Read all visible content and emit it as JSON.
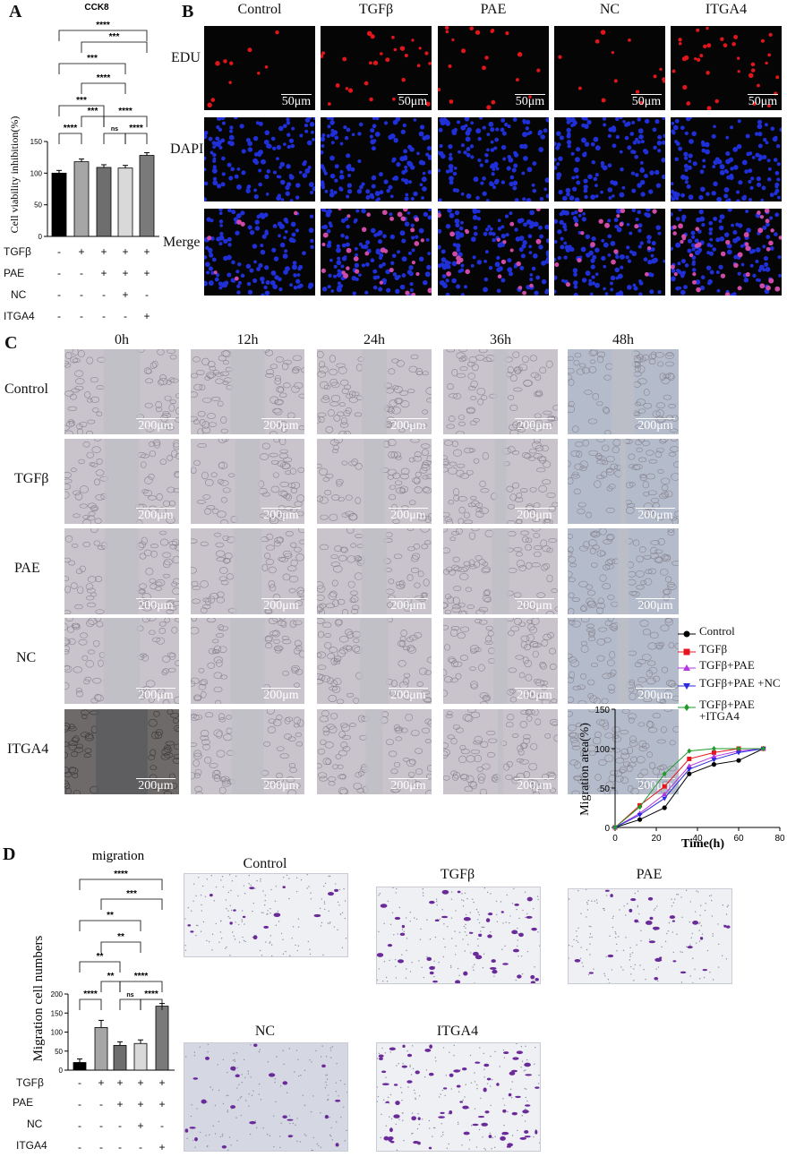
{
  "panels": {
    "a": "A",
    "b": "B",
    "c": "C",
    "d": "D"
  },
  "panel_a": {
    "title": "CCK8",
    "ylabel": "Cell viability inhibition(%)",
    "yticks": [
      "0",
      "50",
      "100",
      "150"
    ],
    "sig": [
      "****",
      "***",
      "***",
      "****",
      "***",
      "***",
      "****",
      "****",
      "ns",
      "****"
    ],
    "treat_rows": [
      "TGFβ",
      "PAE",
      "NC",
      "ITGA4"
    ],
    "signs": [
      [
        "-",
        "+",
        "+",
        "+",
        "+"
      ],
      [
        "-",
        "-",
        "+",
        "+",
        "+"
      ],
      [
        "-",
        "-",
        "-",
        "+",
        "-"
      ],
      [
        "-",
        "-",
        "-",
        "-",
        "+"
      ]
    ]
  },
  "panel_b": {
    "columns": [
      "Control",
      "TGFβ",
      "PAE",
      "NC",
      "ITGA4"
    ],
    "rows": [
      "EDU",
      "DAPI",
      "Merge"
    ],
    "scale": "50μm"
  },
  "panel_c": {
    "columns": [
      "0h",
      "12h",
      "24h",
      "36h",
      "48h"
    ],
    "rows": [
      "Control",
      "TGFβ",
      "PAE",
      "NC",
      "ITGA4"
    ],
    "scale": "200μm",
    "legend": [
      "Control",
      "TGFβ",
      "TGFβ+PAE",
      "TGFβ+PAE +NC",
      "TGFβ+PAE +ITGA4"
    ],
    "ylabel": "Migration area(%)",
    "xlabel": "Time(h)",
    "xticks": [
      "0",
      "20",
      "40",
      "60",
      "80"
    ],
    "yticks": [
      "0",
      "50",
      "100",
      "150"
    ]
  },
  "panel_d": {
    "title": "migration",
    "ylabel": "Migration cell numbers",
    "yticks": [
      "0",
      "50",
      "100",
      "150",
      "200"
    ],
    "sig": [
      "****",
      "***",
      "**",
      "**",
      "**",
      "**",
      "****",
      "****",
      "ns",
      "****"
    ],
    "image_labels": [
      "Control",
      "TGFβ",
      "PAE",
      "NC",
      "ITGA4"
    ],
    "treat_rows": [
      "TGFβ",
      "PAE",
      "NC",
      "ITGA4"
    ],
    "signs": [
      [
        "-",
        "+",
        "+",
        "+",
        "+"
      ],
      [
        "-",
        "-",
        "+",
        "+",
        "+"
      ],
      [
        "-",
        "-",
        "-",
        "+",
        "-"
      ],
      [
        "-",
        "-",
        "-",
        "-",
        "+"
      ]
    ]
  },
  "colors": {
    "control": "#000000",
    "tgfb": "#e8141b",
    "pae": "#b535e0",
    "nc": "#2a2ae0",
    "itga4": "#1f9a2a"
  },
  "chart_data": [
    {
      "type": "bar",
      "title": "CCK8",
      "ylabel": "Cell viability inhibition(%)",
      "ylim": [
        0,
        150
      ],
      "categories": [
        "Control",
        "TGFβ",
        "TGFβ+PAE",
        "TGFβ+PAE+NC",
        "TGFβ+PAE+ITGA4"
      ],
      "values": [
        100,
        118,
        109,
        108,
        128
      ],
      "bar_colors": [
        "#000000",
        "#a6a6a6",
        "#6e6e6e",
        "#d9d9d9",
        "#7a7a7a"
      ]
    },
    {
      "type": "line",
      "xlabel": "Time(h)",
      "ylabel": "Migration area(%)",
      "xlim": [
        0,
        80
      ],
      "ylim": [
        0,
        150
      ],
      "x": [
        0,
        12,
        24,
        36,
        48,
        60,
        72
      ],
      "series": [
        {
          "name": "Control",
          "values": [
            0,
            10,
            25,
            68,
            80,
            85,
            100
          ]
        },
        {
          "name": "TGFβ",
          "values": [
            0,
            28,
            52,
            87,
            95,
            100,
            100
          ]
        },
        {
          "name": "TGFβ+PAE",
          "values": [
            0,
            18,
            42,
            78,
            90,
            97,
            100
          ]
        },
        {
          "name": "TGFβ+PAE +NC",
          "values": [
            0,
            16,
            37,
            74,
            86,
            95,
            100
          ]
        },
        {
          "name": "TGFβ+PAE +ITGA4",
          "values": [
            0,
            26,
            68,
            97,
            100,
            100,
            100
          ]
        }
      ]
    },
    {
      "type": "bar",
      "title": "migration",
      "ylabel": "Migration cell numbers",
      "ylim": [
        0,
        200
      ],
      "categories": [
        "Control",
        "TGFβ",
        "TGFβ+PAE",
        "TGFβ+PAE+NC",
        "TGFβ+PAE+ITGA4"
      ],
      "values": [
        20,
        112,
        65,
        70,
        168
      ],
      "bar_colors": [
        "#000000",
        "#a6a6a6",
        "#6e6e6e",
        "#d9d9d9",
        "#7a7a7a"
      ]
    }
  ]
}
